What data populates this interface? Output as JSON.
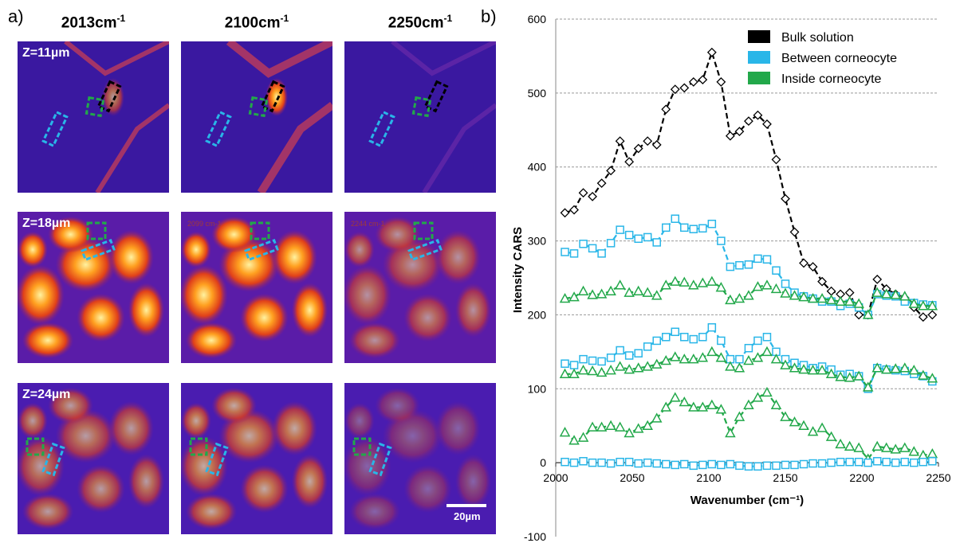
{
  "panel_a": {
    "label": "a)",
    "columns": [
      {
        "main": "2013cm",
        "sup": "-1"
      },
      {
        "main": "2100cm",
        "sup": "-1"
      },
      {
        "main": "2250cm",
        "sup": "-1"
      }
    ],
    "rows": [
      {
        "z_label": "Z=11µm",
        "intensity": "low"
      },
      {
        "z_label": "Z=18µm",
        "intensity": "high"
      },
      {
        "z_label": "Z=24µm",
        "intensity": "medium"
      }
    ],
    "tile_texts": [
      "2099 cm-1",
      "2244 cm-1"
    ],
    "scalebar_label": "20µm",
    "roi_colors": {
      "bulk": "#000000",
      "between": "#29b6e8",
      "inside": "#22a84a"
    }
  },
  "panel_b": {
    "label": "b)"
  },
  "chart_data": {
    "type": "line",
    "xlabel": "Wavenumber (cm⁻¹)",
    "ylabel": "Intensity CARS",
    "xlim": [
      2000,
      2250
    ],
    "ylim": [
      -100,
      600
    ],
    "xticks": [
      2000,
      2050,
      2100,
      2150,
      2200,
      2250
    ],
    "yticks": [
      -100,
      0,
      100,
      200,
      300,
      400,
      500,
      600
    ],
    "grid": "horizontal dashed",
    "legend_position": "top-right",
    "x": [
      2006,
      2012,
      2018,
      2024,
      2030,
      2036,
      2042,
      2048,
      2054,
      2060,
      2066,
      2072,
      2078,
      2084,
      2090,
      2096,
      2102,
      2108,
      2114,
      2120,
      2126,
      2132,
      2138,
      2144,
      2150,
      2156,
      2162,
      2168,
      2174,
      2180,
      2186,
      2192,
      2198,
      2204,
      2210,
      2216,
      2222,
      2228,
      2234,
      2240,
      2246
    ],
    "series": [
      {
        "name": "Bulk solution",
        "group": "Z=11µm",
        "color": "#000000",
        "marker": "diamond",
        "values": [
          338,
          342,
          365,
          360,
          378,
          395,
          435,
          407,
          425,
          435,
          430,
          478,
          505,
          507,
          515,
          518,
          555,
          515,
          442,
          448,
          462,
          470,
          458,
          410,
          357,
          312,
          270,
          265,
          245,
          232,
          228,
          230,
          200,
          200,
          248,
          235,
          228,
          223,
          210,
          197,
          200
        ]
      },
      {
        "name": "Between corneocyte",
        "group": "Z=11µm",
        "color": "#29b6e8",
        "marker": "square",
        "values": [
          285,
          283,
          296,
          290,
          283,
          297,
          315,
          308,
          303,
          305,
          298,
          318,
          330,
          318,
          316,
          317,
          323,
          300,
          265,
          267,
          268,
          276,
          275,
          260,
          242,
          230,
          225,
          222,
          218,
          218,
          212,
          215,
          210,
          200,
          228,
          226,
          225,
          218,
          216,
          214,
          213
        ]
      },
      {
        "name": "Inside corneocyte",
        "group": "Z=11µm",
        "color": "#22a84a",
        "marker": "triangle",
        "values": [
          222,
          224,
          232,
          227,
          228,
          232,
          240,
          230,
          232,
          230,
          226,
          240,
          245,
          244,
          240,
          243,
          245,
          237,
          220,
          222,
          226,
          238,
          240,
          235,
          229,
          226,
          224,
          222,
          222,
          220,
          218,
          218,
          215,
          200,
          230,
          228,
          227,
          225,
          215,
          212,
          212
        ]
      },
      {
        "name": "",
        "group": "Z=18µm",
        "color": "#29b6e8",
        "marker": "square",
        "values": [
          134,
          132,
          140,
          138,
          137,
          142,
          152,
          145,
          148,
          157,
          165,
          170,
          177,
          170,
          167,
          170,
          183,
          165,
          140,
          140,
          155,
          165,
          170,
          150,
          140,
          135,
          132,
          128,
          130,
          126,
          119,
          120,
          117,
          100,
          128,
          126,
          125,
          124,
          120,
          117,
          110
        ]
      },
      {
        "name": "",
        "group": "Z=18µm",
        "color": "#22a84a",
        "marker": "triangle",
        "values": [
          120,
          120,
          125,
          124,
          122,
          125,
          130,
          126,
          128,
          130,
          133,
          138,
          143,
          140,
          140,
          142,
          150,
          142,
          130,
          128,
          138,
          142,
          150,
          140,
          132,
          128,
          126,
          125,
          125,
          120,
          116,
          115,
          117,
          102,
          128,
          126,
          127,
          128,
          125,
          118,
          114
        ]
      },
      {
        "name": "",
        "group": "Z=24µm",
        "color": "#22a84a",
        "marker": "triangle",
        "values": [
          41,
          30,
          34,
          48,
          48,
          50,
          48,
          40,
          46,
          50,
          60,
          75,
          88,
          82,
          75,
          75,
          78,
          72,
          40,
          62,
          78,
          88,
          95,
          78,
          62,
          55,
          50,
          42,
          47,
          35,
          25,
          22,
          20,
          5,
          22,
          20,
          18,
          20,
          15,
          10,
          12
        ]
      },
      {
        "name": "",
        "group": "Z=24µm",
        "color": "#29b6e8",
        "marker": "square",
        "values": [
          1,
          0,
          2,
          0,
          0,
          -1,
          1,
          1,
          -1,
          0,
          -1,
          -2,
          -3,
          -2,
          -4,
          -3,
          -2,
          -3,
          -2,
          -4,
          -5,
          -5,
          -4,
          -4,
          -3,
          -3,
          -2,
          -1,
          -1,
          0,
          1,
          1,
          1,
          0,
          2,
          1,
          0,
          1,
          0,
          1,
          2
        ]
      }
    ]
  }
}
